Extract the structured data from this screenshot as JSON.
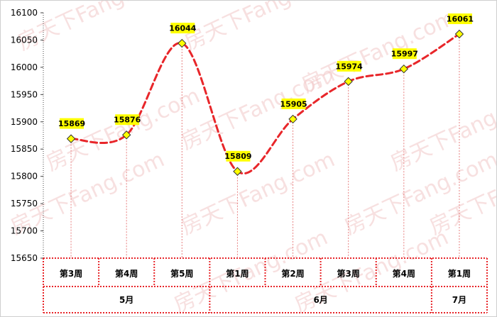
{
  "chart_data": {
    "type": "line",
    "x": [
      "第3周",
      "第4周",
      "第5周",
      "第1周",
      "第2周",
      "第3周",
      "第4周",
      "第1周"
    ],
    "groups": [
      {
        "label": "5月",
        "span": 3
      },
      {
        "label": "6月",
        "span": 4
      },
      {
        "label": "7月",
        "span": 1
      }
    ],
    "series": [
      {
        "values": [
          15869,
          15876,
          16044,
          15809,
          15905,
          15974,
          15997,
          16061
        ]
      }
    ],
    "yticks": [
      15650,
      15700,
      15750,
      15800,
      15850,
      15900,
      15950,
      16000,
      16050,
      16100
    ],
    "ylim": [
      15650,
      16100
    ],
    "line_color": "#e8262a",
    "marker_fill": "#ffff00",
    "label_bg": "#ffff00",
    "grid": false,
    "watermark": "房天下Fang.com"
  }
}
